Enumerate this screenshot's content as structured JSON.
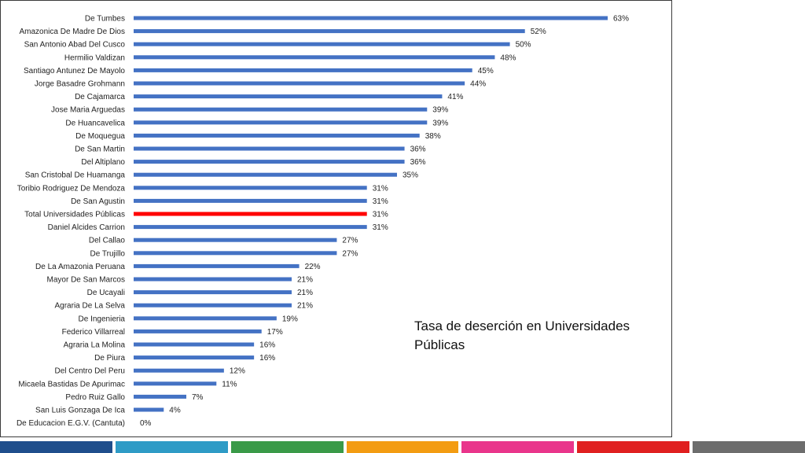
{
  "chart_data": {
    "type": "bar",
    "orientation": "horizontal",
    "title": "Tasa de deserción en Universidades Públicas",
    "categories": [
      "De Tumbes",
      "Amazonica De Madre De Dios",
      "San Antonio Abad Del Cusco",
      "Hermilio Valdizan",
      "Santiago Antunez De Mayolo",
      "Jorge Basadre Grohmann",
      "De Cajamarca",
      "Jose Maria Arguedas",
      "De Huancavelica",
      "De Moquegua",
      "De San Martin",
      "Del Altiplano",
      "San Cristobal De Huamanga",
      "Toribio Rodriguez De Mendoza",
      "De San Agustin",
      "Total Universidades Públicas",
      "Daniel Alcides Carrion",
      "Del Callao",
      "De Trujillo",
      "De La Amazonia Peruana",
      "Mayor De San Marcos",
      "De Ucayali",
      "Agraria De La Selva",
      "De Ingenieria",
      "Federico Villarreal",
      "Agraria La Molina",
      "De Piura",
      "Del Centro Del Peru",
      "Micaela Bastidas De Apurimac",
      "Pedro Ruiz Gallo",
      "San Luis Gonzaga De Ica",
      "De Educacion E.G.V. (Cantuta)"
    ],
    "values": [
      63,
      52,
      50,
      48,
      45,
      44,
      41,
      39,
      39,
      38,
      36,
      36,
      35,
      31,
      31,
      31,
      31,
      27,
      27,
      22,
      21,
      21,
      21,
      19,
      17,
      16,
      16,
      12,
      11,
      7,
      4,
      0
    ],
    "value_labels": [
      "63%",
      "52%",
      "50%",
      "48%",
      "45%",
      "44%",
      "41%",
      "39%",
      "39%",
      "38%",
      "36%",
      "36%",
      "35%",
      "31%",
      "31%",
      "31%",
      "31%",
      "27%",
      "27%",
      "22%",
      "21%",
      "21%",
      "21%",
      "19%",
      "17%",
      "16%",
      "16%",
      "12%",
      "11%",
      "7%",
      "4%",
      "0%"
    ],
    "highlight_index": 15,
    "xlim": [
      0,
      63
    ],
    "grid": false,
    "legend": "none",
    "colors": {
      "bar": "#4472c4",
      "highlight": "#ff0000"
    }
  },
  "footer": {
    "stripe_colors": [
      "#1f4e8c",
      "#2e9bc6",
      "#3a9a48",
      "#f39c12",
      "#e9358b",
      "#e02020",
      "#6d6d6d"
    ]
  }
}
